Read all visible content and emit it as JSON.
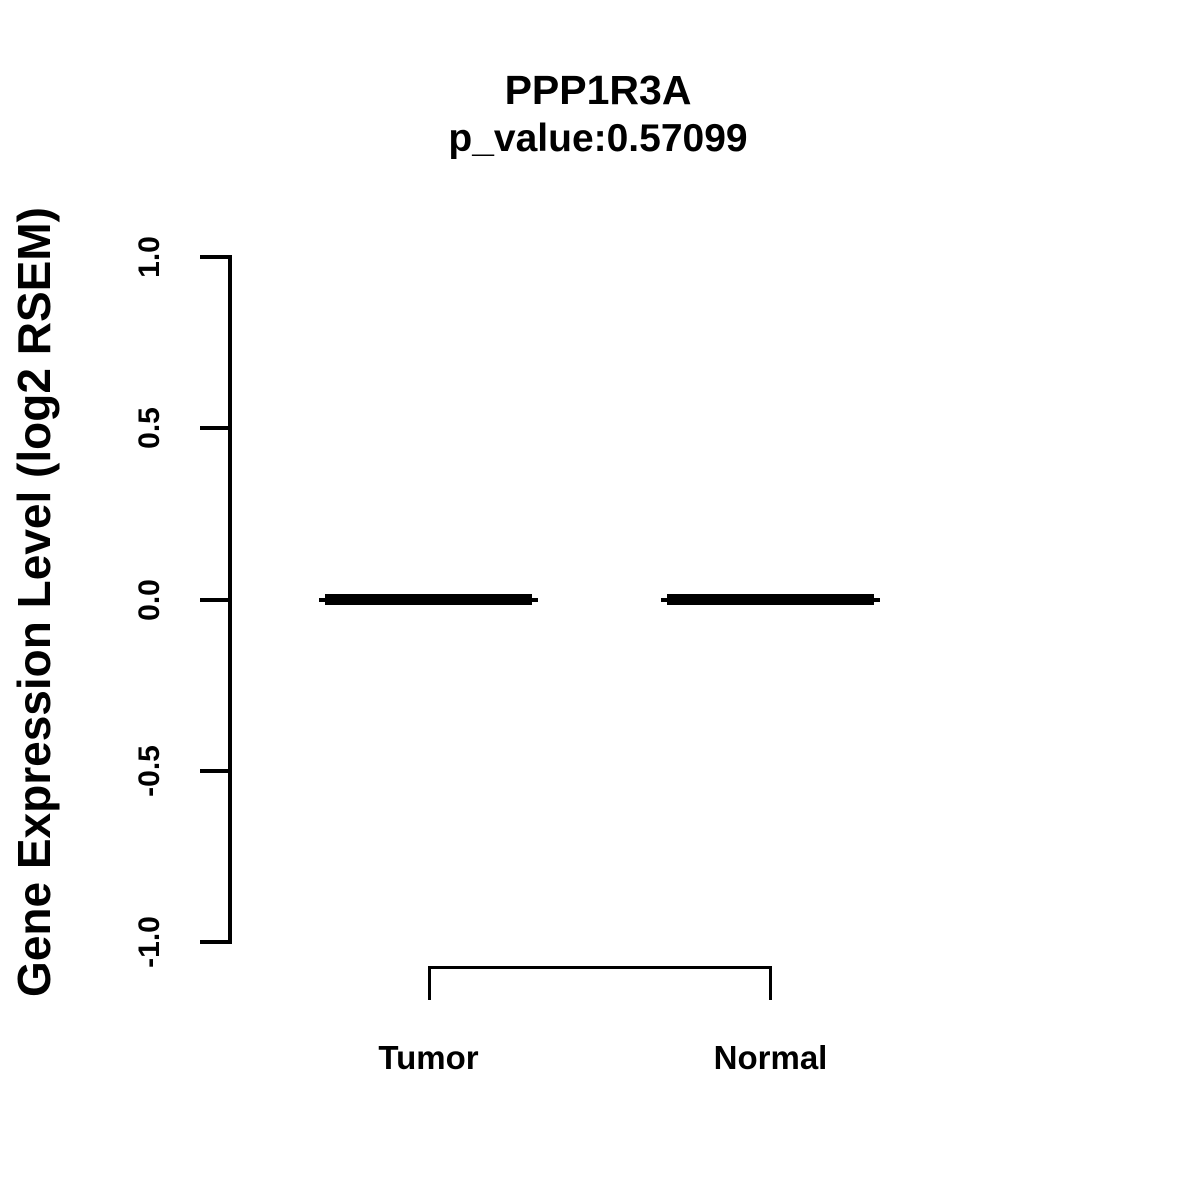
{
  "chart_data": {
    "type": "boxplot",
    "title": "PPP1R3A",
    "subtitle": "p_value:0.57099",
    "gene": "PPP1R3A",
    "p_value": 0.57099,
    "ylabel": "Gene Expression Level (log2 RSEM)",
    "xlabel": "",
    "ylim": [
      -1.0,
      1.0
    ],
    "yticks": [
      1.0,
      0.5,
      0.0,
      -0.5,
      -1.0
    ],
    "ytick_labels": [
      "1.0",
      "0.5",
      "0.0",
      "-0.5",
      "-1.0"
    ],
    "categories": [
      "Tumor",
      "Normal"
    ],
    "series": [
      {
        "name": "Tumor",
        "median": 0.0,
        "q1": 0.0,
        "q3": 0.0,
        "whisker_low": 0.0,
        "whisker_high": 0.0
      },
      {
        "name": "Normal",
        "median": 0.0,
        "q1": 0.0,
        "q3": 0.0,
        "whisker_low": 0.0,
        "whisker_high": 0.0
      }
    ],
    "legend": "none",
    "grid": false,
    "comparison_bracket": {
      "from": "Tumor",
      "to": "Normal"
    },
    "colors": {
      "foreground": "#000000",
      "background": "#ffffff"
    }
  }
}
